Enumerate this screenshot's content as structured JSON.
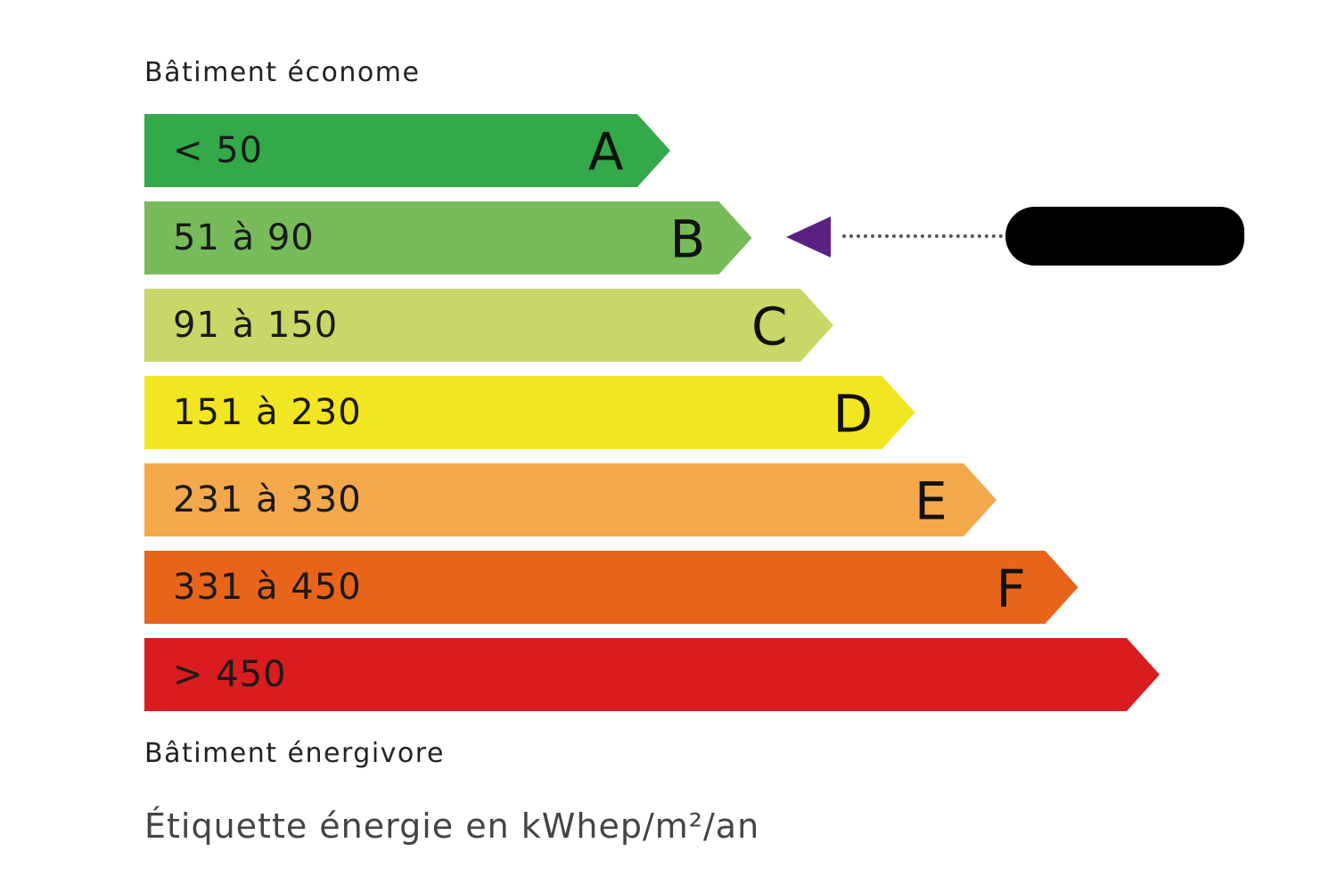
{
  "top_label": "Bâtiment économe",
  "bottom_label": "Bâtiment énergivore",
  "footer": "Étiquette énergie en kWhep/m²/an",
  "classes": [
    {
      "letter": "A",
      "range": "< 50",
      "color": "#33a94a"
    },
    {
      "letter": "B",
      "range": "51 à 90",
      "color": "#77bb5a"
    },
    {
      "letter": "C",
      "range": "91 à 150",
      "color": "#c8d767"
    },
    {
      "letter": "D",
      "range": "151 à 230",
      "color": "#f2e521"
    },
    {
      "letter": "E",
      "range": "231 à 330",
      "color": "#f3a84c"
    },
    {
      "letter": "F",
      "range": "331 à 450",
      "color": "#e8641b"
    },
    {
      "letter": "",
      "range": "> 450",
      "color": "#d81c1f"
    }
  ],
  "indicator": {
    "class": "B",
    "color": "#5b2181",
    "value_redacted": true
  }
}
